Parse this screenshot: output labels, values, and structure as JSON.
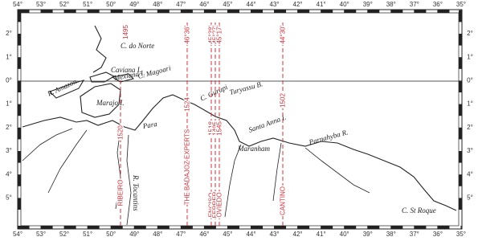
{
  "map": {
    "lon_labels": [
      "54°",
      "53°",
      "52°",
      "51°",
      "50°",
      "49°",
      "48°",
      "47°",
      "46°",
      "45°",
      "44°",
      "43°",
      "42°",
      "41°",
      "40°",
      "39°",
      "38°",
      "37°",
      "36°",
      "35°"
    ],
    "lat_labels": [
      "2°",
      "1°",
      "0°",
      "1°",
      "2°",
      "3°",
      "4°",
      "5°"
    ],
    "places": [
      "C. do Norte",
      "Caviana I.",
      "Mexiana I.",
      "C. Magoari",
      "Marajo I.",
      "R. Amazon",
      "Para",
      "R. Tocantins",
      "C. Gurupi",
      "Turyassu B.",
      "Santa Anna I.",
      "Maranham",
      "Parnahyba R.",
      "C. St Roque"
    ],
    "lines": [
      {
        "name": "RIBEIRO",
        "year": "1520"
      },
      {
        "name": "THE BADAJOZ EXPERTS",
        "year": "1524",
        "degree": "46°36'"
      },
      {
        "name": "ENCISO",
        "year": "1518",
        "degree": "45°38'"
      },
      {
        "name": "FERRER",
        "year": "1495",
        "degree": "45°27'"
      },
      {
        "name": "OVIEDO",
        "year": "1545",
        "degree": "45°17'"
      },
      {
        "name": "CANTINO",
        "year": "1502",
        "degree": "44°30'"
      }
    ],
    "note": "1495"
  }
}
